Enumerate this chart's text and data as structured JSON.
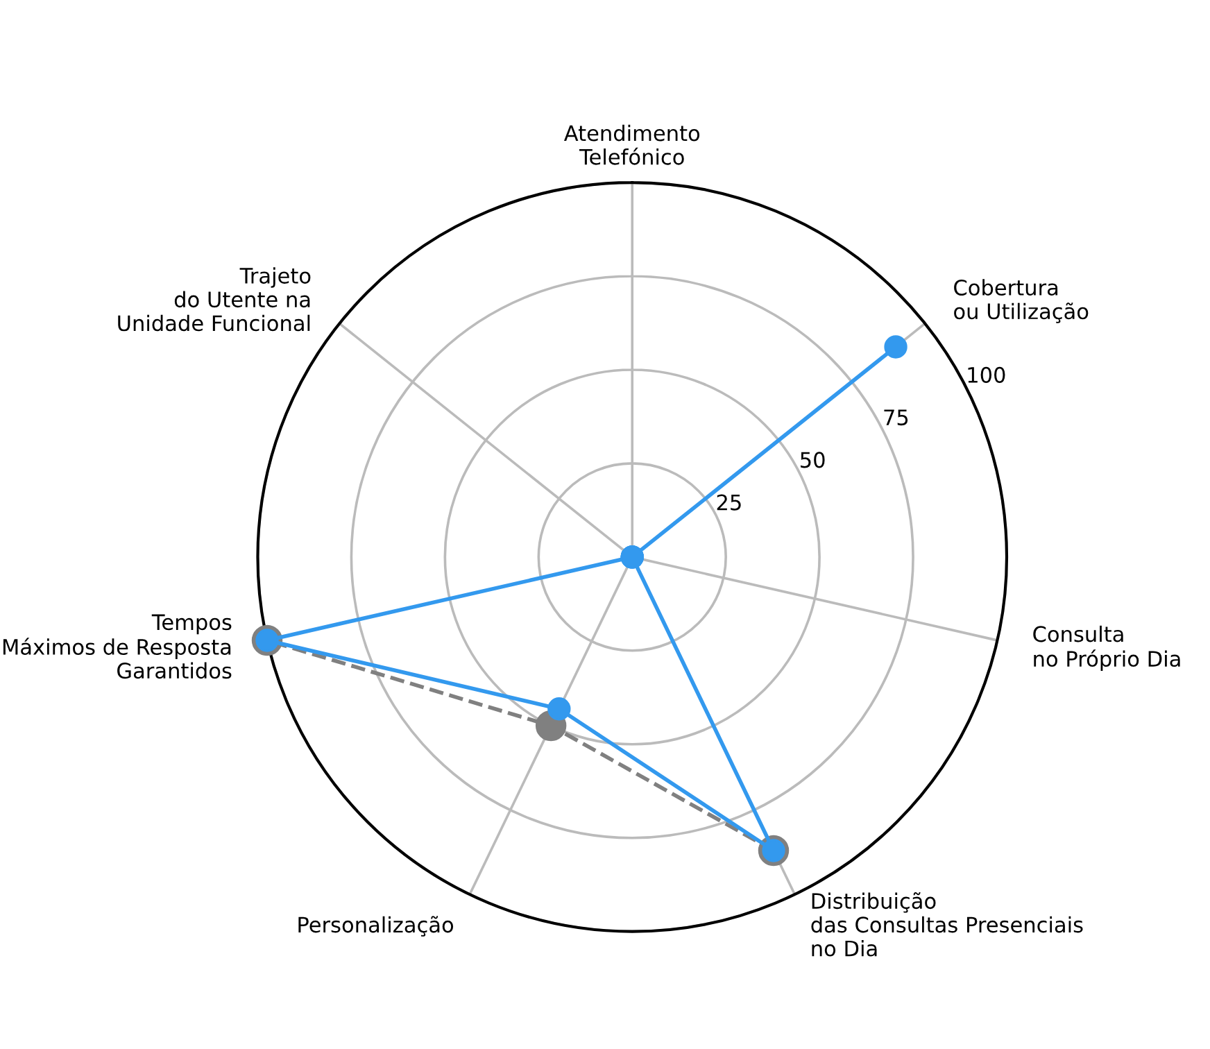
{
  "chart_data": {
    "type": "radar",
    "categories": [
      "Atendimento\nTelefónico",
      "Cobertura\nou Utilização",
      "Consulta\nno Próprio Dia",
      "Distribuição\ndas Consultas Presenciais\nno Dia",
      "Personalização",
      "Tempos\nMáximos de Resposta\nGarantidos",
      "Trajeto\ndo Utente na\nUnidade Funcional"
    ],
    "series": [
      {
        "color": "#808080",
        "line_style": "dashed",
        "values": [
          null,
          null,
          null,
          87,
          50,
          100,
          null
        ]
      },
      {
        "color": "#3399ee",
        "line_style": "solid",
        "values": [
          0,
          90,
          0,
          87,
          45,
          100,
          0
        ]
      }
    ],
    "ylim": [
      0,
      100
    ],
    "yticks": [
      25,
      50,
      75,
      100
    ],
    "grid": true,
    "marker": "circle"
  }
}
